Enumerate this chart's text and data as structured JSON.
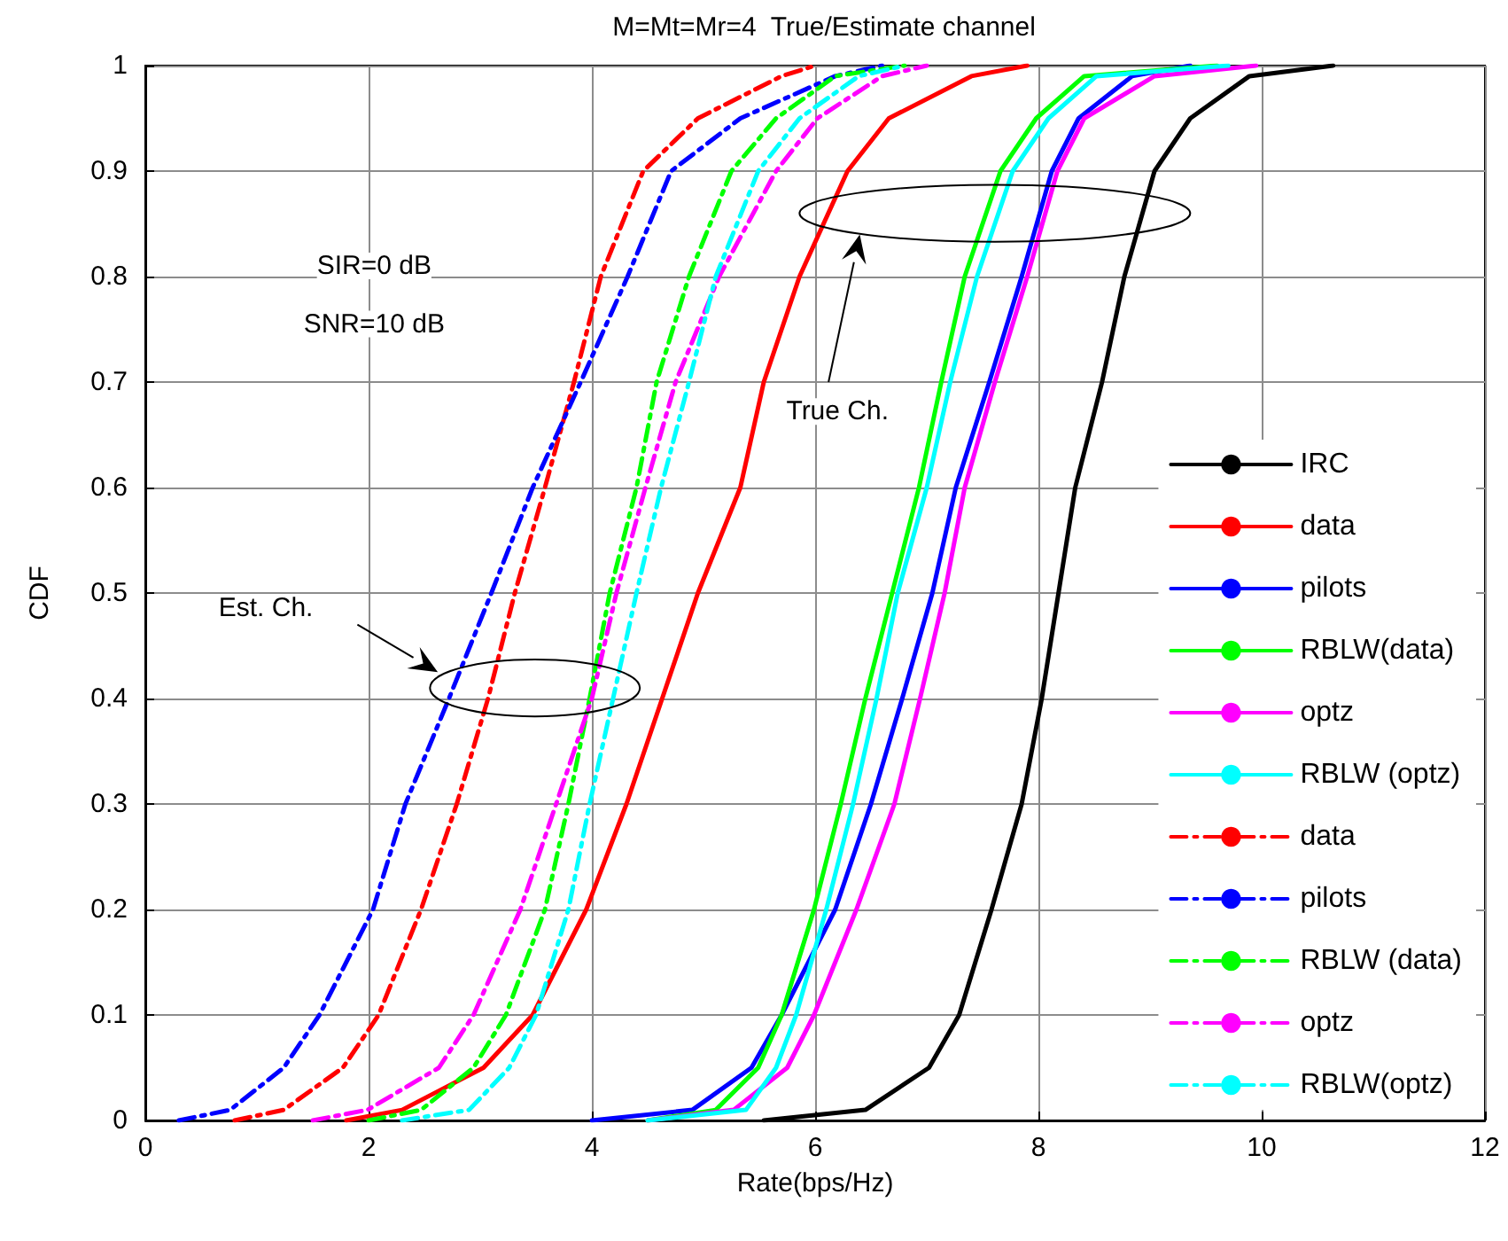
{
  "chart_data": {
    "type": "line",
    "title": "M=Mt=Mr=4  True/Estimate channel",
    "xlabel": "Rate(bps/Hz)",
    "ylabel": "CDF",
    "xlim": [
      0,
      12
    ],
    "xticks": [
      0,
      2,
      4,
      6,
      8,
      10,
      12
    ],
    "ylim": [
      0,
      1
    ],
    "yticks": [
      0,
      0.1,
      0.2,
      0.3,
      0.4,
      0.5,
      0.6,
      0.7,
      0.8,
      0.9,
      1
    ],
    "grid": true,
    "legend": "bottom right",
    "marker": "none",
    "annotations": [
      "SIR=0 dB",
      "SNR=10 dB",
      "Est. Ch.",
      "True Ch."
    ],
    "series": [
      {
        "name": "IRC",
        "color": "#000000",
        "line_style": "solid",
        "x": [
          5.54,
          6.45,
          7.02,
          7.29,
          7.58,
          7.85,
          8.03,
          8.18,
          8.33,
          8.57,
          8.77,
          9.04,
          9.36,
          9.89,
          10.64
        ],
        "values": [
          0,
          0.01,
          0.05,
          0.1,
          0.2,
          0.3,
          0.4,
          0.5,
          0.6,
          0.7,
          0.8,
          0.9,
          0.95,
          0.99,
          1
        ]
      },
      {
        "name": "data",
        "color": "#ff0000",
        "line_style": "solid",
        "x": [
          1.8,
          2.3,
          3.03,
          3.47,
          3.95,
          4.31,
          4.63,
          4.95,
          5.33,
          5.54,
          5.86,
          6.29,
          6.66,
          7.4,
          7.9
        ],
        "values": [
          0,
          0.01,
          0.05,
          0.1,
          0.2,
          0.3,
          0.4,
          0.5,
          0.6,
          0.7,
          0.8,
          0.9,
          0.95,
          0.99,
          1
        ]
      },
      {
        "name": "pilots",
        "color": "#0000ff",
        "line_style": "solid",
        "x": [
          4.0,
          4.9,
          5.43,
          5.7,
          6.18,
          6.5,
          6.78,
          7.05,
          7.26,
          7.56,
          7.85,
          8.12,
          8.36,
          8.84,
          9.36
        ],
        "values": [
          0,
          0.01,
          0.05,
          0.1,
          0.2,
          0.3,
          0.4,
          0.5,
          0.6,
          0.7,
          0.8,
          0.9,
          0.95,
          0.99,
          1
        ]
      },
      {
        "name": "RBLW(data)",
        "color": "#00ff00",
        "line_style": "solid",
        "x": [
          4.5,
          5.11,
          5.49,
          5.7,
          5.99,
          6.23,
          6.45,
          6.69,
          6.93,
          7.13,
          7.34,
          7.66,
          7.98,
          8.41,
          9.6
        ],
        "values": [
          0,
          0.01,
          0.05,
          0.1,
          0.2,
          0.3,
          0.4,
          0.5,
          0.6,
          0.7,
          0.8,
          0.9,
          0.95,
          0.99,
          1
        ]
      },
      {
        "name": "optz",
        "color": "#ff00ff",
        "line_style": "solid",
        "x": [
          4.5,
          5.27,
          5.75,
          5.99,
          6.37,
          6.71,
          6.94,
          7.16,
          7.34,
          7.61,
          7.9,
          8.17,
          8.41,
          9.04,
          9.95
        ],
        "values": [
          0,
          0.01,
          0.05,
          0.1,
          0.2,
          0.3,
          0.4,
          0.5,
          0.6,
          0.7,
          0.8,
          0.9,
          0.95,
          0.99,
          1
        ]
      },
      {
        "name": "RBLW (optz)",
        "color": "#00ffff",
        "line_style": "solid",
        "x": [
          4.5,
          5.38,
          5.65,
          5.83,
          6.1,
          6.34,
          6.55,
          6.74,
          7.0,
          7.21,
          7.45,
          7.77,
          8.09,
          8.52,
          9.7
        ],
        "values": [
          0,
          0.01,
          0.05,
          0.1,
          0.2,
          0.3,
          0.4,
          0.5,
          0.6,
          0.7,
          0.8,
          0.9,
          0.95,
          0.99,
          1
        ]
      },
      {
        "name": "data",
        "color": "#ff0000",
        "line_style": "dashed",
        "x": [
          0.8,
          1.24,
          1.77,
          2.09,
          2.47,
          2.79,
          3.07,
          3.31,
          3.58,
          3.84,
          4.08,
          4.46,
          4.95,
          5.7,
          6.0
        ],
        "values": [
          0,
          0.01,
          0.05,
          0.1,
          0.2,
          0.3,
          0.4,
          0.5,
          0.6,
          0.7,
          0.8,
          0.9,
          0.95,
          0.99,
          1
        ]
      },
      {
        "name": "pilots",
        "color": "#0000ff",
        "line_style": "dashed",
        "x": [
          0.3,
          0.76,
          1.24,
          1.56,
          2.04,
          2.33,
          2.72,
          3.1,
          3.47,
          3.9,
          4.32,
          4.71,
          5.33,
          6.18,
          6.6
        ],
        "values": [
          0,
          0.01,
          0.05,
          0.1,
          0.2,
          0.3,
          0.4,
          0.5,
          0.6,
          0.7,
          0.8,
          0.9,
          0.95,
          0.99,
          1
        ]
      },
      {
        "name": "RBLW (data)",
        "color": "#00ff00",
        "line_style": "dashed",
        "x": [
          2.0,
          2.47,
          2.94,
          3.23,
          3.58,
          3.79,
          3.98,
          4.16,
          4.4,
          4.58,
          4.87,
          5.25,
          5.65,
          6.18,
          6.8
        ],
        "values": [
          0,
          0.01,
          0.05,
          0.1,
          0.2,
          0.3,
          0.4,
          0.5,
          0.6,
          0.7,
          0.8,
          0.9,
          0.95,
          0.99,
          1
        ]
      },
      {
        "name": "optz",
        "color": "#ff00ff",
        "line_style": "dashed",
        "x": [
          1.5,
          1.99,
          2.63,
          2.94,
          3.36,
          3.68,
          4.0,
          4.22,
          4.48,
          4.75,
          5.14,
          5.65,
          6.02,
          6.6,
          7.0
        ],
        "values": [
          0,
          0.01,
          0.05,
          0.1,
          0.2,
          0.3,
          0.4,
          0.5,
          0.6,
          0.7,
          0.8,
          0.9,
          0.95,
          0.99,
          1
        ]
      },
      {
        "name": "RBLW(optz)",
        "color": "#00ffff",
        "line_style": "dashed",
        "x": [
          2.3,
          2.9,
          3.26,
          3.5,
          3.79,
          3.98,
          4.19,
          4.4,
          4.62,
          4.87,
          5.11,
          5.49,
          5.86,
          6.39,
          6.8
        ],
        "values": [
          0,
          0.01,
          0.05,
          0.1,
          0.2,
          0.3,
          0.4,
          0.5,
          0.6,
          0.7,
          0.8,
          0.9,
          0.95,
          0.99,
          1
        ]
      }
    ]
  }
}
